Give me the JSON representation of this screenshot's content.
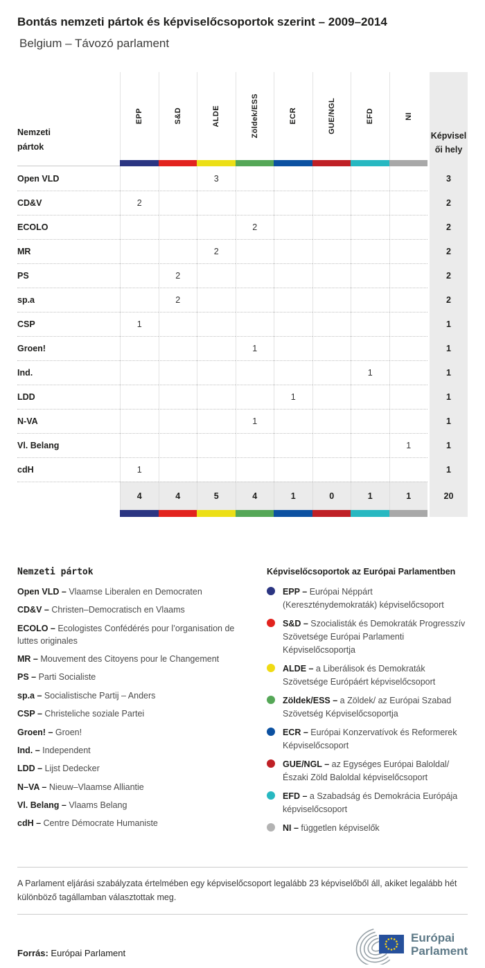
{
  "title": "Bontás nemzeti pártok és képviselőcsoportok szerint – 2009–2014",
  "subtitle": "Belgium – Távozó parlament",
  "table": {
    "corner_label_lines": [
      "Nemzeti",
      "pártok"
    ],
    "seats_label_lines": [
      "Képvisel",
      "ői hely"
    ],
    "groups": [
      {
        "label": "EPP",
        "color": "#2b3582"
      },
      {
        "label": "S&D",
        "color": "#e2231e"
      },
      {
        "label": "ALDE",
        "color": "#ecdf16"
      },
      {
        "label": "Zöldek/ESS",
        "color": "#55a757"
      },
      {
        "label": "ECR",
        "color": "#0c51a1"
      },
      {
        "label": "GUE/NGL",
        "color": "#bf2026"
      },
      {
        "label": "EFD",
        "color": "#27b8c1"
      },
      {
        "label": "NI",
        "color": "#a8a8a8"
      }
    ],
    "rows": [
      {
        "party": "Open VLD",
        "cells": [
          "",
          "",
          "3",
          "",
          "",
          "",
          "",
          ""
        ],
        "total": "3"
      },
      {
        "party": "CD&V",
        "cells": [
          "2",
          "",
          "",
          "",
          "",
          "",
          "",
          ""
        ],
        "total": "2"
      },
      {
        "party": "ECOLO",
        "cells": [
          "",
          "",
          "",
          "2",
          "",
          "",
          "",
          ""
        ],
        "total": "2"
      },
      {
        "party": "MR",
        "cells": [
          "",
          "",
          "2",
          "",
          "",
          "",
          "",
          ""
        ],
        "total": "2"
      },
      {
        "party": "PS",
        "cells": [
          "",
          "2",
          "",
          "",
          "",
          "",
          "",
          ""
        ],
        "total": "2"
      },
      {
        "party": "sp.a",
        "cells": [
          "",
          "2",
          "",
          "",
          "",
          "",
          "",
          ""
        ],
        "total": "2"
      },
      {
        "party": "CSP",
        "cells": [
          "1",
          "",
          "",
          "",
          "",
          "",
          "",
          ""
        ],
        "total": "1"
      },
      {
        "party": "Groen!",
        "cells": [
          "",
          "",
          "",
          "1",
          "",
          "",
          "",
          ""
        ],
        "total": "1"
      },
      {
        "party": "Ind.",
        "cells": [
          "",
          "",
          "",
          "",
          "",
          "",
          "1",
          ""
        ],
        "total": "1"
      },
      {
        "party": "LDD",
        "cells": [
          "",
          "",
          "",
          "",
          "1",
          "",
          "",
          ""
        ],
        "total": "1"
      },
      {
        "party": "N-VA",
        "cells": [
          "",
          "",
          "",
          "1",
          "",
          "",
          "",
          ""
        ],
        "total": "1"
      },
      {
        "party": "Vl. Belang",
        "cells": [
          "",
          "",
          "",
          "",
          "",
          "",
          "",
          "1"
        ],
        "total": "1"
      },
      {
        "party": "cdH",
        "cells": [
          "1",
          "",
          "",
          "",
          "",
          "",
          "",
          ""
        ],
        "total": "1"
      }
    ],
    "totals": [
      "4",
      "4",
      "5",
      "4",
      "1",
      "0",
      "1",
      "1"
    ],
    "grand_total": "20"
  },
  "legend_parties": {
    "title": "Nemzeti pártok",
    "items": [
      {
        "abbr": "Open VLD –",
        "name": "Vlaamse Liberalen en Democraten"
      },
      {
        "abbr": "CD&V –",
        "name": "Christen–Democratisch en Vlaams"
      },
      {
        "abbr": "ECOLO –",
        "name": "Ecologistes Confédérés pour l’organisation de luttes originales"
      },
      {
        "abbr": "MR –",
        "name": "Mouvement des Citoyens pour le Changement"
      },
      {
        "abbr": "PS –",
        "name": "Parti Socialiste"
      },
      {
        "abbr": "sp.a –",
        "name": "Socialistische Partij – Anders"
      },
      {
        "abbr": "CSP –",
        "name": "Christeliche soziale Partei"
      },
      {
        "abbr": "Groen! –",
        "name": "Groen!"
      },
      {
        "abbr": "Ind. –",
        "name": "Independent"
      },
      {
        "abbr": "LDD –",
        "name": "Lijst Dedecker"
      },
      {
        "abbr": "N–VA –",
        "name": "Nieuw–Vlaamse Alliantie"
      },
      {
        "abbr": "Vl. Belang –",
        "name": "Vlaams Belang"
      },
      {
        "abbr": "cdH –",
        "name": "Centre Démocrate Humaniste"
      }
    ]
  },
  "legend_groups": {
    "title": "Képviselőcsoportok az Európai Parlamentben",
    "items": [
      {
        "abbr": "EPP –",
        "name": "Európai Néppárt (Kereszténydemokraták) képviselőcsoport",
        "color": "#2b3582"
      },
      {
        "abbr": "S&D –",
        "name": "Szocialisták és Demokraták Progresszív Szövetsége Európai Parlamenti Képviselőcsoportja",
        "color": "#e2231e"
      },
      {
        "abbr": "ALDE –",
        "name": "a Liberálisok és Demokraták Szövetsége Európáért képviselőcsoport",
        "color": "#f0db13"
      },
      {
        "abbr": "Zöldek/ESS –",
        "name": "a Zöldek/ az Európai Szabad Szövetség Képviselőcsoportja",
        "color": "#55a757"
      },
      {
        "abbr": "ECR –",
        "name": "Európai Konzervatívok és Reformerek Képviselőcsoport",
        "color": "#0c51a1"
      },
      {
        "abbr": "GUE/NGL –",
        "name": "az Egységes Európai Baloldal/Északi Zöld Baloldal képviselőcsoport",
        "color": "#bf2026"
      },
      {
        "abbr": "EFD –",
        "name": "a Szabadság és Demokrácia Európája képviselőcsoport",
        "color": "#27b8c1"
      },
      {
        "abbr": "NI –",
        "name": "független képviselők",
        "color": "#b3b3b3"
      }
    ]
  },
  "note": "A Parlament eljárási szabályzata értelmében egy képviselőcsoport legalább 23 képviselőből áll, akiket legalább hét különböző tagállamban választottak meg.",
  "source_label": "Forrás:",
  "source_value": "Európai Parlament",
  "logo": {
    "line1": "Európai",
    "line2": "Parlament"
  },
  "chart_data": {
    "type": "table",
    "title": "Bontás nemzeti pártok és képviselőcsoportok szerint – 2009–2014",
    "subtitle": "Belgium – Távozó parlament",
    "columns": [
      "EPP",
      "S&D",
      "ALDE",
      "Zöldek/ESS",
      "ECR",
      "GUE/NGL",
      "EFD",
      "NI",
      "Képviselői hely"
    ],
    "rows": [
      [
        "Open VLD",
        null,
        null,
        3,
        null,
        null,
        null,
        null,
        null,
        3
      ],
      [
        "CD&V",
        2,
        null,
        null,
        null,
        null,
        null,
        null,
        null,
        2
      ],
      [
        "ECOLO",
        null,
        null,
        null,
        2,
        null,
        null,
        null,
        null,
        2
      ],
      [
        "MR",
        null,
        null,
        2,
        null,
        null,
        null,
        null,
        null,
        2
      ],
      [
        "PS",
        null,
        2,
        null,
        null,
        null,
        null,
        null,
        null,
        2
      ],
      [
        "sp.a",
        null,
        2,
        null,
        null,
        null,
        null,
        null,
        null,
        2
      ],
      [
        "CSP",
        1,
        null,
        null,
        null,
        null,
        null,
        null,
        null,
        1
      ],
      [
        "Groen!",
        null,
        null,
        null,
        1,
        null,
        null,
        null,
        null,
        1
      ],
      [
        "Ind.",
        null,
        null,
        null,
        null,
        null,
        null,
        1,
        null,
        1
      ],
      [
        "LDD",
        null,
        null,
        null,
        null,
        1,
        null,
        null,
        null,
        1
      ],
      [
        "N-VA",
        null,
        null,
        null,
        1,
        null,
        null,
        null,
        null,
        1
      ],
      [
        "Vl. Belang",
        null,
        null,
        null,
        null,
        null,
        null,
        null,
        1,
        1
      ],
      [
        "cdH",
        1,
        null,
        null,
        null,
        null,
        null,
        null,
        null,
        1
      ]
    ],
    "column_totals": [
      4,
      4,
      5,
      4,
      1,
      0,
      1,
      1
    ],
    "grand_total": 20
  }
}
